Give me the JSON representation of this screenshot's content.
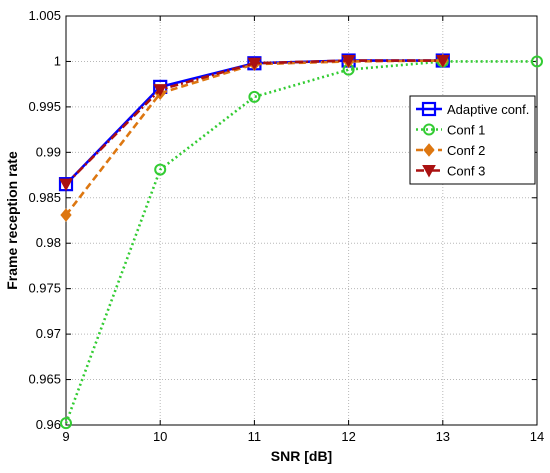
{
  "chart_data": {
    "type": "line",
    "xlabel": "SNR [dB]",
    "ylabel": "Frame reception rate",
    "xlim": [
      9,
      14
    ],
    "ylim": [
      0.96,
      1.005
    ],
    "xticks": [
      "9",
      "10",
      "11",
      "12",
      "13",
      "14"
    ],
    "yticks": [
      "0.96",
      "0.965",
      "0.97",
      "0.975",
      "0.98",
      "0.985",
      "0.99",
      "0.995",
      "1",
      "1.005"
    ],
    "grid": true,
    "legend_position": "right",
    "series": [
      {
        "name": "Adaptive conf.",
        "x": [
          9,
          10,
          11,
          12,
          13
        ],
        "y": [
          0.9865,
          0.9972,
          0.9998,
          1.0001,
          1.0001
        ],
        "color": "#0000ff",
        "line_style": "solid",
        "marker": "square"
      },
      {
        "name": "Conf 1",
        "x": [
          9,
          10,
          11,
          12,
          13,
          14
        ],
        "y": [
          0.9602,
          0.9881,
          0.9961,
          0.9991,
          1.0,
          1.0
        ],
        "color": "#33cc33",
        "line_style": "dotted",
        "marker": "circle"
      },
      {
        "name": "Conf 2",
        "x": [
          9,
          10,
          11,
          12,
          13
        ],
        "y": [
          0.9831,
          0.9965,
          0.9997,
          1.0,
          1.0001
        ],
        "color": "#dd7711",
        "line_style": "dashed",
        "marker": "diamond"
      },
      {
        "name": "Conf 3",
        "x": [
          9,
          10,
          11,
          12,
          13
        ],
        "y": [
          0.9865,
          0.9969,
          0.9998,
          1.0001,
          1.0001
        ],
        "color": "#aa1111",
        "line_style": "dashdot",
        "marker": "triangle-down"
      }
    ]
  }
}
